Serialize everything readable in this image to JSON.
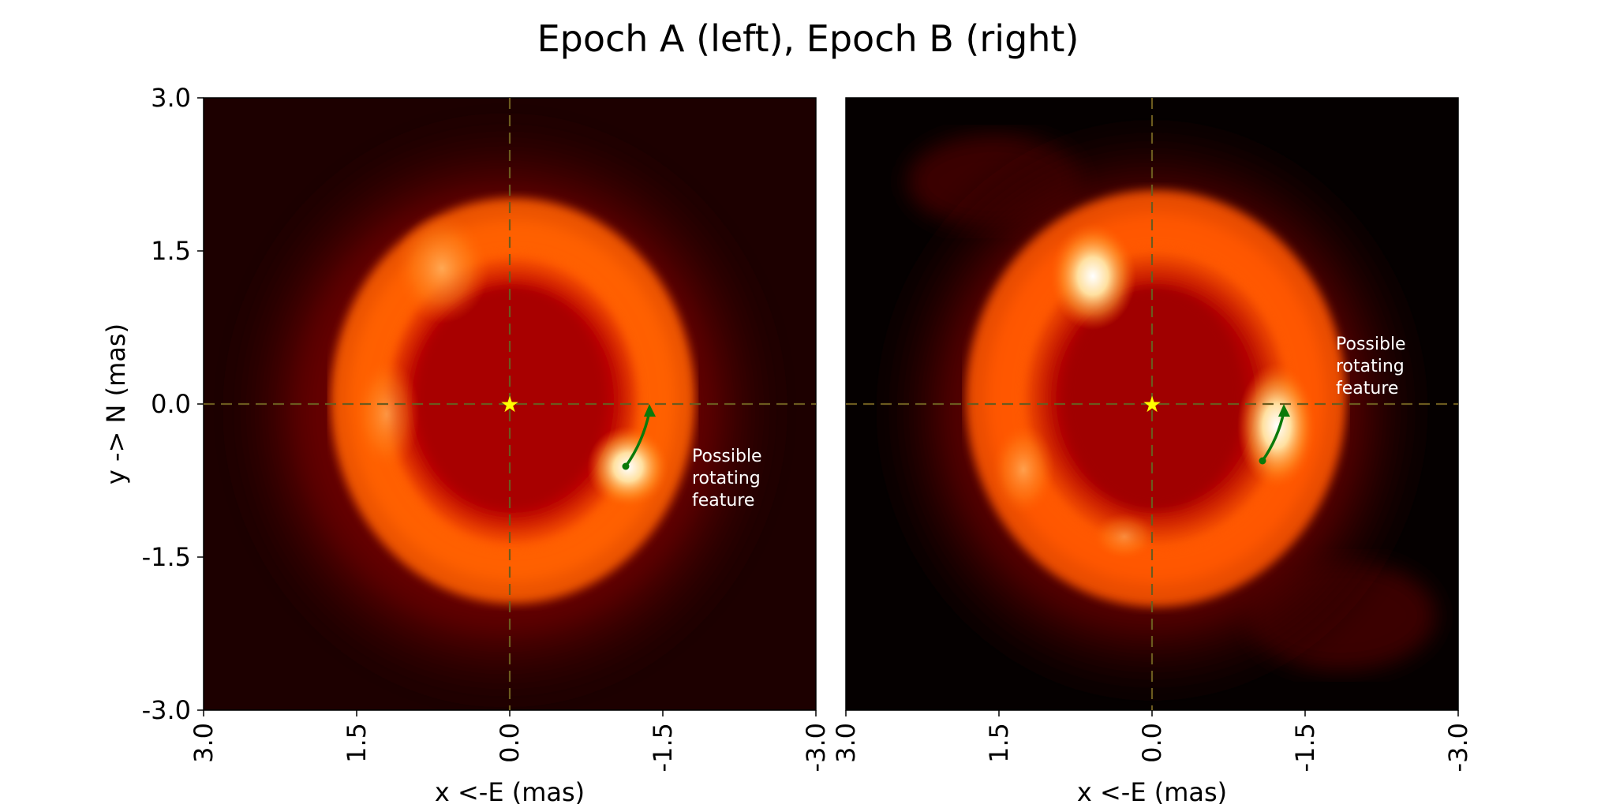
{
  "figure": {
    "title": "Epoch A (left), Epoch B (right)"
  },
  "chart_data": [
    {
      "type": "heatmap",
      "panel": "left",
      "xlabel": "x <-E (mas)",
      "ylabel": "y -> N (mas)",
      "xlim": [
        3.0,
        -3.0
      ],
      "ylim": [
        -3.0,
        3.0
      ],
      "x_ticks": [
        "3.0",
        "1.5",
        "0.0",
        "-1.5",
        "-3.0"
      ],
      "y_ticks": [
        "3.0",
        "1.5",
        "0.0",
        "-1.5",
        "-3.0"
      ],
      "colormap": "hot",
      "grid": false,
      "crosshair": {
        "x": 0.0,
        "y": 0.0,
        "style": "dashed",
        "color": "#6b5a1e"
      },
      "center_marker": {
        "shape": "star",
        "x": 0.0,
        "y": 0.0,
        "color": "#ffff00"
      },
      "ring": {
        "center": [
          0.0,
          0.0
        ],
        "radius": 1.35,
        "width": 0.75
      },
      "bright_spots": [
        {
          "x": -1.2,
          "y": -0.7,
          "intensity": 1.0
        },
        {
          "x": 0.6,
          "y": 1.2,
          "intensity": 0.7
        },
        {
          "x": 1.2,
          "y": -0.2,
          "intensity": 0.6
        }
      ],
      "arrow": {
        "from": [
          -1.15,
          -0.63
        ],
        "to": [
          -1.4,
          -0.02
        ],
        "color": "#0a7a0a"
      },
      "annotation": {
        "text_lines": [
          "Possible",
          "rotating",
          "feature"
        ],
        "x": -1.8,
        "y": -0.55,
        "color": "#ffffff"
      }
    },
    {
      "type": "heatmap",
      "panel": "right",
      "xlabel": "x <-E (mas)",
      "xlim": [
        3.0,
        -3.0
      ],
      "ylim": [
        -3.0,
        3.0
      ],
      "x_ticks": [
        "3.0",
        "1.5",
        "0.0",
        "-1.5",
        "-3.0"
      ],
      "colormap": "hot",
      "grid": false,
      "crosshair": {
        "x": 0.0,
        "y": 0.0,
        "style": "dashed",
        "color": "#6b5a1e"
      },
      "center_marker": {
        "shape": "star",
        "x": 0.0,
        "y": 0.0,
        "color": "#ffff00"
      },
      "ring": {
        "center": [
          0.0,
          0.0
        ],
        "radius": 1.4,
        "width": 0.8
      },
      "bright_spots": [
        {
          "x": -1.3,
          "y": -0.3,
          "intensity": 1.0
        },
        {
          "x": 0.6,
          "y": 1.2,
          "intensity": 1.0
        },
        {
          "x": 1.3,
          "y": -0.7,
          "intensity": 0.6
        },
        {
          "x": 0.3,
          "y": -1.3,
          "intensity": 0.5
        }
      ],
      "arrow": {
        "from": [
          -1.08,
          -0.57
        ],
        "to": [
          -1.3,
          -0.02
        ],
        "color": "#0a7a0a"
      },
      "annotation": {
        "text_lines": [
          "Possible",
          "rotating",
          "feature"
        ],
        "x": -1.8,
        "y": 0.58,
        "color": "#ffffff"
      }
    }
  ]
}
